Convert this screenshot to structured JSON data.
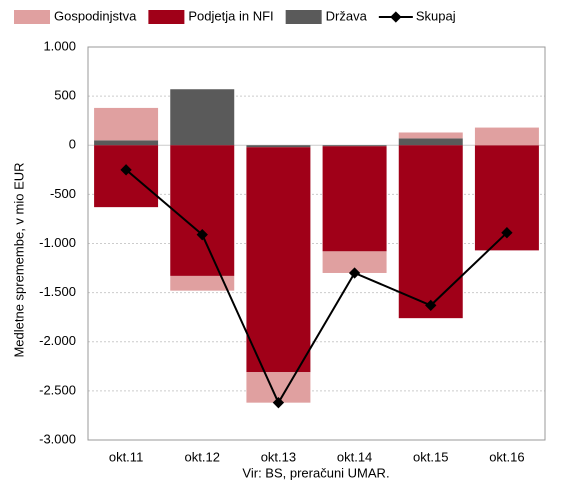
{
  "chart_data": {
    "type": "stacked_bar_line",
    "y_label": "Medletne spremembe, v mio EUR",
    "source": "Vir: BS, preračuni UMAR.",
    "categories": [
      "okt.11",
      "okt.12",
      "okt.13",
      "okt.14",
      "okt.15",
      "okt.16"
    ],
    "series": [
      {
        "name": "Gospodinjstva",
        "color": "#e0a0a0",
        "values": [
          330,
          -150,
          -310,
          -220,
          60,
          180
        ]
      },
      {
        "name": "Podjetja in NFI",
        "color": "#a00018",
        "values": [
          -630,
          -1330,
          -2290,
          -1070,
          -1760,
          -1070
        ]
      },
      {
        "name": "Država",
        "color": "#5a5a5a",
        "values": [
          50,
          570,
          -20,
          -10,
          70,
          0
        ]
      },
      {
        "name": "Skupaj",
        "color": "#000000",
        "type": "line",
        "values": [
          -250,
          -910,
          -2620,
          -1300,
          -1630,
          -890
        ]
      }
    ],
    "ylim": [
      -3000,
      1000
    ],
    "yticks": [
      {
        "value": 1000,
        "label": "1.000"
      },
      500,
      0,
      -500,
      {
        "value": -1000,
        "label": "-1.000"
      },
      {
        "value": -1500,
        "label": "-1.500"
      },
      {
        "value": -2000,
        "label": "-2.000"
      },
      {
        "value": -2500,
        "label": "-2.500"
      },
      {
        "value": -3000,
        "label": "-3.000"
      }
    ],
    "grid": true
  }
}
